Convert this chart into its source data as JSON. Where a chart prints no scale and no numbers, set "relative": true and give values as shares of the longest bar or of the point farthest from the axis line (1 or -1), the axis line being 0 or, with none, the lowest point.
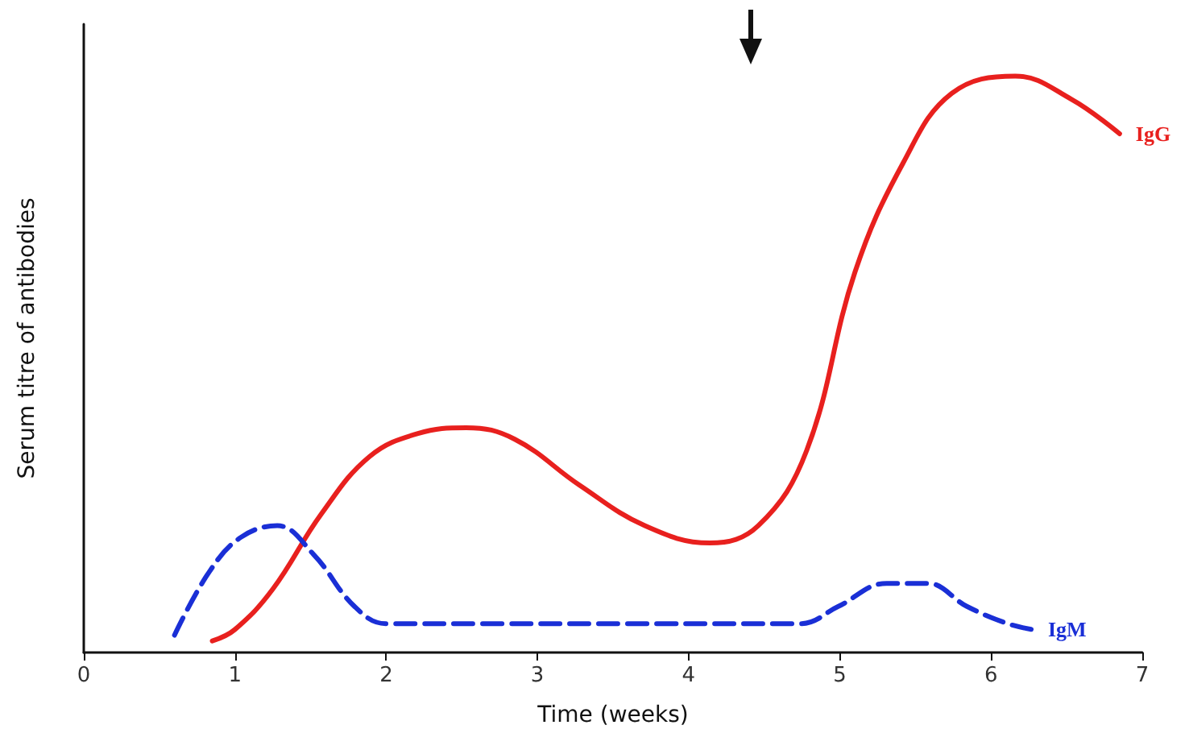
{
  "chart_data": {
    "type": "line",
    "relative": true,
    "xlabel": "Time (weeks)",
    "ylabel": "Serum titre of antibodies",
    "xlim": [
      0,
      7
    ],
    "xticks": [
      0,
      1,
      2,
      3,
      4,
      5,
      6,
      7
    ],
    "grid": false,
    "legend": false,
    "marker": "none",
    "tick_labels": "x",
    "series": [
      {
        "name": "IgG",
        "color": "#e8201e",
        "line_style": "solid",
        "x": [
          0.85,
          1.0,
          1.25,
          1.57,
          1.89,
          2.21,
          2.53,
          2.85,
          3.28,
          3.71,
          4.14,
          4.46,
          4.78,
          5.1,
          5.42,
          5.74,
          6.16,
          6.53,
          6.85
        ],
        "values": [
          0.02,
          0.04,
          0.11,
          0.24,
          0.34,
          0.38,
          0.39,
          0.37,
          0.29,
          0.22,
          0.19,
          0.22,
          0.35,
          0.66,
          0.85,
          0.97,
          1.0,
          0.96,
          0.9
        ]
      },
      {
        "name": "IgM",
        "color": "#1a2fd6",
        "line_style": "dashed",
        "x": [
          0.6,
          0.83,
          1.04,
          1.28,
          1.52,
          1.79,
          2.0,
          2.64,
          3.71,
          4.74,
          4.99,
          5.31,
          5.58,
          5.84,
          6.11,
          6.27
        ],
        "values": [
          0.03,
          0.14,
          0.2,
          0.22,
          0.17,
          0.08,
          0.05,
          0.05,
          0.05,
          0.05,
          0.08,
          0.12,
          0.12,
          0.08,
          0.05,
          0.04
        ]
      }
    ]
  }
}
